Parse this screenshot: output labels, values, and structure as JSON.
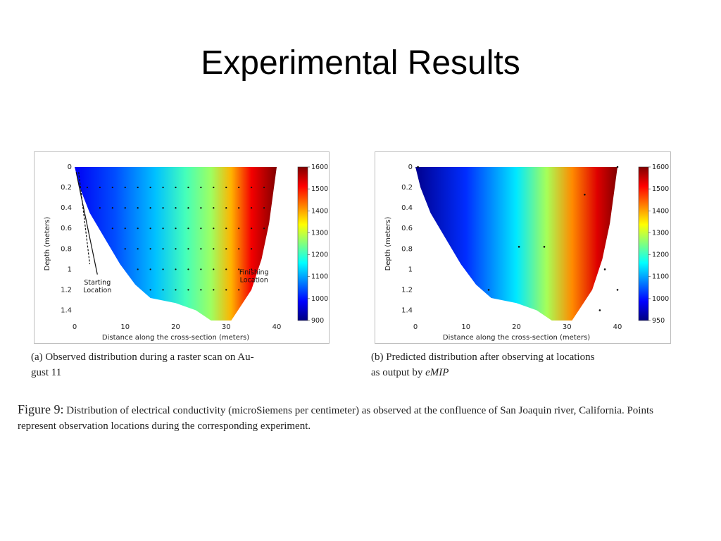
{
  "slide": {
    "title": "Experimental Results"
  },
  "captions": {
    "a_prefix": "(a) Observed distribution during a raster scan on Au-",
    "a_suffix": "gust 11",
    "b_line1": "(b) Predicted distribution after observing at locations",
    "b_line2_prefix": "as output by ",
    "b_line2_em": "eMIP",
    "figure_label": "Figure 9:",
    "figure_text": "Distribution of electrical conductivity (microSiemens per centimeter) as observed at the confluence of San Joaquin river, California. Points represent observation locations during the corresponding experiment."
  },
  "chart_data": [
    {
      "type": "heatmap",
      "panel": "a",
      "xlabel": "Distance along the cross-section (meters)",
      "ylabel": "Depth (meters)",
      "xlim": [
        0,
        40
      ],
      "ylim": [
        1.5,
        0
      ],
      "x_ticks": [
        "0",
        "10",
        "20",
        "30",
        "40"
      ],
      "y_ticks": [
        "0",
        "0.2",
        "0.4",
        "0.6",
        "0.8",
        "1",
        "1.2",
        "1.4"
      ],
      "colorbar": {
        "min": 900,
        "max": 1600,
        "ticks": [
          "1600",
          "1500",
          "1400",
          "1300",
          "1200",
          "1100",
          "1000",
          "900"
        ]
      },
      "annotations": [
        {
          "text_lines": [
            "Starting",
            "Location"
          ],
          "x": 4.5,
          "y": 1.15
        },
        {
          "text_lines": [
            "Finishing",
            "Location"
          ],
          "x": 35.5,
          "y": 1.05
        }
      ],
      "profile": [
        {
          "x": 0,
          "y": 0
        },
        {
          "x": 1,
          "y": 0.2
        },
        {
          "x": 3,
          "y": 0.45
        },
        {
          "x": 6,
          "y": 0.7
        },
        {
          "x": 9,
          "y": 0.95
        },
        {
          "x": 12,
          "y": 1.15
        },
        {
          "x": 15,
          "y": 1.28
        },
        {
          "x": 20,
          "y": 1.33
        },
        {
          "x": 24,
          "y": 1.4
        },
        {
          "x": 27,
          "y": 1.5
        },
        {
          "x": 31,
          "y": 1.5
        },
        {
          "x": 33,
          "y": 1.35
        },
        {
          "x": 35,
          "y": 1.2
        },
        {
          "x": 37,
          "y": 0.9
        },
        {
          "x": 38.5,
          "y": 0.55
        },
        {
          "x": 40,
          "y": 0
        }
      ],
      "gradient": [
        {
          "x": 0,
          "value": 980
        },
        {
          "x": 8,
          "value": 1040
        },
        {
          "x": 16,
          "value": 1120
        },
        {
          "x": 22,
          "value": 1210
        },
        {
          "x": 27,
          "value": 1270
        },
        {
          "x": 31,
          "value": 1390
        },
        {
          "x": 35,
          "value": 1520
        },
        {
          "x": 40,
          "value": 1600
        }
      ],
      "observation_rows": [
        0.2,
        0.4,
        0.6,
        0.8,
        1.0,
        1.2
      ],
      "observation_x_step": 2.5
    },
    {
      "type": "heatmap",
      "panel": "b",
      "xlabel": "Distance along the cross-section (meters)",
      "ylabel": "Depth (meters)",
      "xlim": [
        0,
        40
      ],
      "ylim": [
        1.5,
        0
      ],
      "x_ticks": [
        "0",
        "10",
        "20",
        "30",
        "40"
      ],
      "y_ticks": [
        "0",
        "0.2",
        "0.4",
        "0.6",
        "0.8",
        "1",
        "1.2",
        "1.4"
      ],
      "colorbar": {
        "min": 950,
        "max": 1600,
        "ticks": [
          "1600",
          "1500",
          "1400",
          "1300",
          "1200",
          "1100",
          "1000",
          "950"
        ]
      },
      "profile": [
        {
          "x": 0,
          "y": 0
        },
        {
          "x": 1,
          "y": 0.2
        },
        {
          "x": 3,
          "y": 0.45
        },
        {
          "x": 6,
          "y": 0.7
        },
        {
          "x": 9,
          "y": 0.95
        },
        {
          "x": 12,
          "y": 1.15
        },
        {
          "x": 15,
          "y": 1.28
        },
        {
          "x": 20,
          "y": 1.33
        },
        {
          "x": 24,
          "y": 1.4
        },
        {
          "x": 27,
          "y": 1.5
        },
        {
          "x": 31,
          "y": 1.5
        },
        {
          "x": 33,
          "y": 1.35
        },
        {
          "x": 35,
          "y": 1.2
        },
        {
          "x": 37,
          "y": 0.9
        },
        {
          "x": 38.5,
          "y": 0.55
        },
        {
          "x": 40,
          "y": 0
        }
      ],
      "gradient": [
        {
          "x": 0,
          "value": 960
        },
        {
          "x": 10,
          "value": 1060
        },
        {
          "x": 20,
          "value": 1180
        },
        {
          "x": 26,
          "value": 1300
        },
        {
          "x": 31,
          "value": 1430
        },
        {
          "x": 36,
          "value": 1540
        },
        {
          "x": 40,
          "value": 1600
        }
      ],
      "observation_points": [
        {
          "x": 0.5,
          "y": 0
        },
        {
          "x": 40,
          "y": 0
        },
        {
          "x": 33.5,
          "y": 0.27
        },
        {
          "x": 20.5,
          "y": 0.78
        },
        {
          "x": 25.5,
          "y": 0.78
        },
        {
          "x": 14.5,
          "y": 1.2
        },
        {
          "x": 37.5,
          "y": 1.0
        },
        {
          "x": 40,
          "y": 1.2
        },
        {
          "x": 36.5,
          "y": 1.4
        }
      ]
    }
  ]
}
